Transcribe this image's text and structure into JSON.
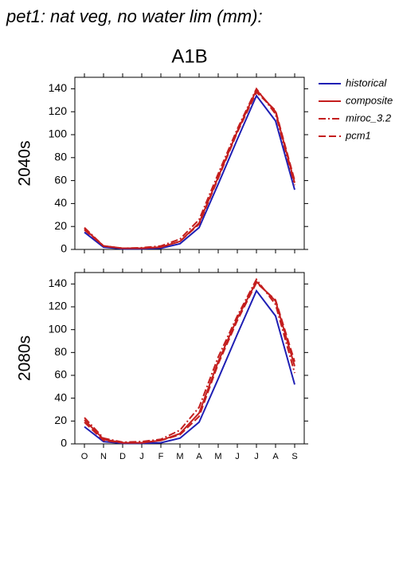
{
  "header": {
    "title": "pet1: nat veg, no water lim (mm):",
    "subtitle": "A1B"
  },
  "chart_data": [
    {
      "type": "line",
      "ylabel": "2040s",
      "ylim": [
        0,
        150
      ],
      "yticks": [
        0,
        20,
        40,
        60,
        80,
        100,
        120,
        140
      ],
      "series": [
        {
          "name": "historical",
          "color": "#1f1fb4",
          "dash": "solid",
          "values": [
            15,
            2,
            0.5,
            0.5,
            1,
            5,
            19,
            57,
            96,
            134,
            112,
            52
          ]
        },
        {
          "name": "composite",
          "color": "#c41e1e",
          "dash": "solid",
          "values": [
            18,
            3,
            1,
            1,
            2,
            7,
            23,
            63,
            103,
            139,
            120,
            58
          ]
        },
        {
          "name": "miroc_3.2",
          "color": "#c41e1e",
          "dash": "dashdot",
          "values": [
            19,
            3,
            1,
            1.5,
            3,
            9,
            26,
            66,
            105,
            140,
            118,
            56
          ]
        },
        {
          "name": "pcm1",
          "color": "#c41e1e",
          "dash": "dash",
          "values": [
            17,
            3,
            1,
            1,
            2,
            7,
            22,
            62,
            102,
            137,
            121,
            60
          ]
        }
      ]
    },
    {
      "type": "line",
      "ylabel": "2080s",
      "ylim": [
        0,
        150
      ],
      "yticks": [
        0,
        20,
        40,
        60,
        80,
        100,
        120,
        140
      ],
      "categories": [
        "O",
        "N",
        "D",
        "J",
        "F",
        "M",
        "A",
        "M",
        "J",
        "J",
        "A",
        "S"
      ],
      "series": [
        {
          "color": "#1f1fb4",
          "dash": "solid",
          "values": [
            15,
            2,
            0.5,
            0.5,
            1,
            5,
            19,
            57,
            96,
            134,
            112,
            52
          ]
        },
        {
          "color": "#c41e1e",
          "dash": "solid",
          "values": [
            21,
            4,
            1,
            1,
            3,
            9,
            27,
            72,
            110,
            142,
            125,
            68
          ]
        },
        {
          "color": "#c41e1e",
          "dash": "dashdot",
          "values": [
            23,
            5,
            1.5,
            2,
            4,
            12,
            32,
            76,
            112,
            144,
            122,
            62
          ]
        },
        {
          "color": "#c41e1e",
          "dash": "dash",
          "values": [
            19,
            3,
            1,
            1,
            3,
            8,
            24,
            70,
            108,
            141,
            126,
            72
          ]
        }
      ]
    }
  ]
}
